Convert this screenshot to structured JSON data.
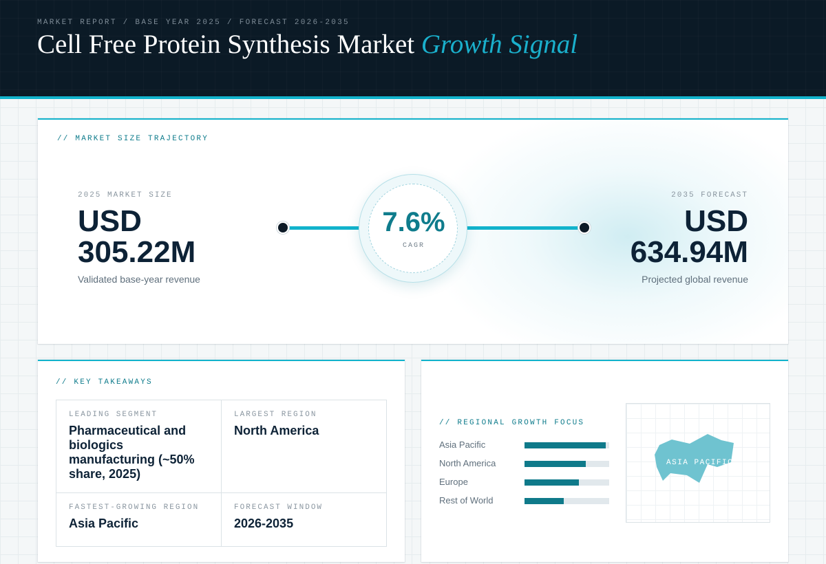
{
  "header": {
    "breadcrumb": "MARKET REPORT / BASE YEAR 2025 / FORECAST 2026-2035",
    "title_main": "Cell Free Protein Synthesis Market",
    "title_accent": "Growth Signal"
  },
  "trajectory": {
    "section_label": "// MARKET SIZE TRAJECTORY",
    "base": {
      "label": "2025 MARKET SIZE",
      "currency": "USD",
      "value": "305.22M",
      "sub": "Validated base-year revenue"
    },
    "forecast": {
      "label": "2035 FORECAST",
      "currency": "USD",
      "value": "634.94M",
      "sub": "Projected global revenue"
    },
    "cagr": {
      "value": "7.6%",
      "label": "CAGR"
    }
  },
  "takeaways": {
    "section_label": "// KEY TAKEAWAYS",
    "items": [
      {
        "label": "LEADING SEGMENT",
        "value": "Pharmaceutical and biologics manufacturing (~50% share, 2025)"
      },
      {
        "label": "LARGEST REGION",
        "value": "North America"
      },
      {
        "label": "FASTEST-GROWING REGION",
        "value": "Asia Pacific"
      },
      {
        "label": "FORECAST WINDOW",
        "value": "2026-2035"
      }
    ]
  },
  "regional": {
    "section_label": "// REGIONAL GROWTH FOCUS",
    "regions": [
      {
        "name": "Asia Pacific",
        "level": 0.96
      },
      {
        "name": "North America",
        "level": 0.72
      },
      {
        "name": "Europe",
        "level": 0.64
      },
      {
        "name": "Rest of World",
        "level": 0.46
      }
    ],
    "map_label": "ASIA PACIFIC"
  },
  "colors": {
    "accent": "#12b3cc",
    "header_bg": "#0b1a26",
    "bar_fill": "#0f7a8a",
    "map_shape": "#6fc3d0"
  }
}
